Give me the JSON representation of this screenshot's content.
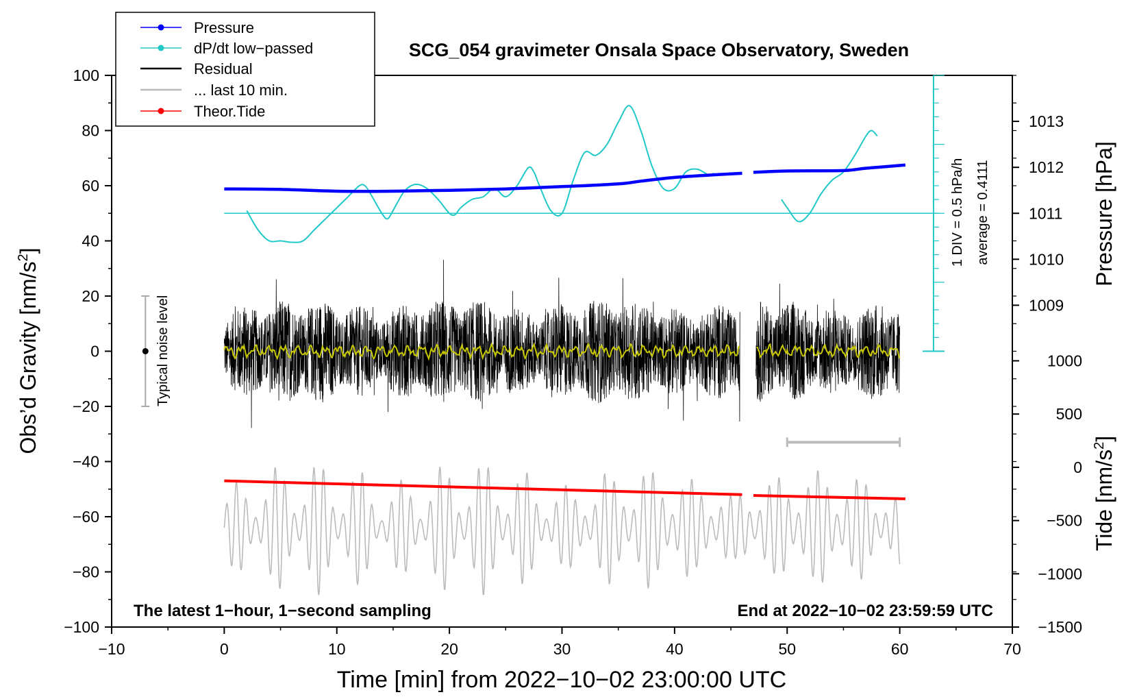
{
  "chart_data": {
    "type": "line",
    "title": "SCG_054 gravimeter Onsala Space Observatory, Sweden",
    "xlabel": "Time [min] from 2022−10−02 23:00:00 UTC",
    "ylabel_left": "Obs’d Gravity [nm/s²]",
    "ylabel_left_base": "Obs’d Gravity [nm/s",
    "ylabel_left_sup": "2",
    "ylabel_left_end": "]",
    "ylabel_right_pressure": "Pressure [hPa]",
    "ylabel_right_tide": "Tide [nm/s²]",
    "ylabel_right_tide_base": "Tide [nm/s",
    "ylabel_right_tide_sup": "2",
    "ylabel_right_tide_end": "]",
    "xlim": [
      -10,
      70
    ],
    "ylim_left": [
      -100,
      100
    ],
    "x_ticks": [
      -10,
      0,
      10,
      20,
      30,
      40,
      50,
      60,
      70
    ],
    "x_tick_labels": [
      "−10",
      "0",
      "10",
      "20",
      "30",
      "40",
      "50",
      "60",
      "70"
    ],
    "y_ticks_left": [
      100,
      80,
      60,
      40,
      20,
      0,
      -20,
      -40,
      -60,
      -80,
      -100
    ],
    "y_tick_labels_left": [
      "100",
      "80",
      "60",
      "40",
      "20",
      "0",
      "−20",
      "−40",
      "−60",
      "−80",
      "−100"
    ],
    "pressure_axis": {
      "range": [
        1008,
        1014
      ],
      "ticks": [
        1009,
        1010,
        1011,
        1012,
        1013
      ],
      "tick_labels": [
        "1009",
        "1010",
        "1011",
        "1012",
        "1013"
      ]
    },
    "tide_axis": {
      "range": [
        -1500,
        1000
      ],
      "ticks": [
        1000,
        500,
        0,
        -500,
        -1000,
        -1500
      ],
      "tick_labels": [
        "1000",
        "500",
        "0",
        "−500",
        "−1000",
        "−1500"
      ]
    },
    "legend": [
      {
        "label": "Pressure",
        "color": "#0000ff"
      },
      {
        "label": "dP/dt low−passed",
        "color": "#20c8c8"
      },
      {
        "label": "Residual",
        "color": "#000000"
      },
      {
        "label": "... last 10 min.",
        "color": "#bbbbbb"
      },
      {
        "label": "Theor.Tide",
        "color": "#ff0000"
      }
    ],
    "legend_position": "top-left",
    "annotations": {
      "noise_label": "Typical noise level",
      "noise_range": [
        -20,
        20
      ],
      "noise_x": -7,
      "dpdt_scale": "1 DIV = 0.5 hPa/h",
      "dpdt_average": "average = 0.4111",
      "dpdt_baseline_y": 50,
      "dpdt_scale_bar": {
        "x": 63,
        "y_range": [
          0,
          100
        ],
        "divisions": 20
      },
      "bottom_left": "The latest 1−hour, 1−second sampling",
      "bottom_right": "End at 2022−10−02 23:59:59 UTC",
      "last10_bar": {
        "x_range": [
          50,
          60
        ],
        "y": -33
      }
    },
    "series": [
      {
        "name": "Pressure",
        "units": "hPa",
        "color": "#0000ff",
        "segments": [
          {
            "x": [
              0,
              5,
              10,
              15,
              20,
              25,
              30,
              35,
              37,
              40,
              43,
              46
            ],
            "y": [
              1011.53,
              1011.52,
              1011.48,
              1011.48,
              1011.5,
              1011.53,
              1011.58,
              1011.64,
              1011.7,
              1011.78,
              1011.83,
              1011.87
            ]
          },
          {
            "x": [
              47,
              50,
              55,
              57,
              60.5
            ],
            "y": [
              1011.89,
              1011.92,
              1011.93,
              1011.98,
              1012.05
            ]
          }
        ]
      },
      {
        "name": "dP/dt low−passed",
        "units": "nm/s² axis (1 DIV = 0.5 hPa/h)",
        "color": "#20c8c8",
        "segments": [
          {
            "x": [
              2,
              3,
              4,
              5,
              6,
              7,
              8,
              9,
              10,
              11,
              12,
              12.5,
              13,
              14,
              14.5,
              15,
              16,
              17,
              18,
              19,
              20,
              20.5,
              21,
              22,
              23,
              24,
              25,
              26,
              27,
              27.5,
              28,
              29,
              30,
              31,
              32,
              33,
              34,
              35,
              36,
              37,
              38,
              39,
              40,
              41,
              42,
              43,
              43.5
            ],
            "y": [
              51,
              44,
              40,
              40,
              39.5,
              40,
              44,
              48,
              52,
              56,
              60,
              60,
              57,
              50,
              48,
              51,
              58,
              60.5,
              59,
              55,
              50,
              49.5,
              52,
              55,
              56,
              59,
              56,
              60,
              66.5,
              65,
              60,
              51,
              50,
              62,
              72,
              71,
              75,
              83,
              89,
              80,
              67,
              59,
              59,
              65,
              66,
              64,
              64.5
            ]
          },
          {
            "x": [
              49.5,
              50,
              51,
              52,
              53,
              54,
              55,
              56,
              57,
              57.5,
              58
            ],
            "y": [
              55,
              52,
              47,
              50,
              57,
              62,
              65,
              71,
              78,
              80,
              78
            ]
          }
        ]
      },
      {
        "name": "Residual",
        "units": "nm/s²",
        "color": "#000000",
        "x_range": [
          0,
          60
        ],
        "gap": [
          45.8,
          47.2
        ],
        "amplitude_envelope": "about ±15 nm/s², peaks near ±30 nm/s²",
        "smoothed_color": "#c8c800",
        "smoothed_level": 0
      },
      {
        "name": "... last 10 min.",
        "units": "nm/s²",
        "color": "#bbbbbb",
        "x_range": [
          0,
          60
        ],
        "center": -64,
        "amplitude_envelope": "about ±10 to ±30 nm/s²"
      },
      {
        "name": "Theor.Tide",
        "units": "nm/s² (tide axis)",
        "color": "#ff0000",
        "segments": [
          {
            "x": [
              0,
              46
            ],
            "y": [
              -47,
              -52
            ]
          },
          {
            "x": [
              47,
              60.5
            ],
            "y": [
              -52.3,
              -53.5
            ]
          }
        ]
      }
    ]
  }
}
